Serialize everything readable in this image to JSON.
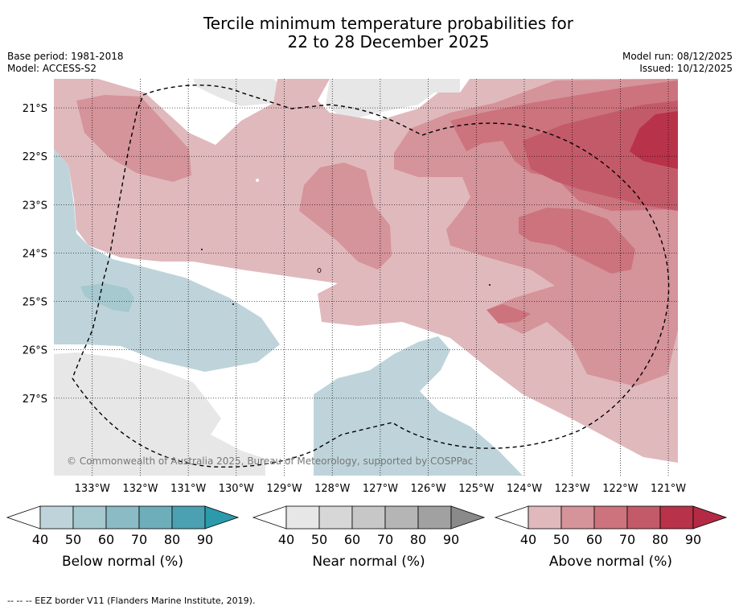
{
  "title_line1": "Tercile minimum temperature probabilities for",
  "title_line2": "22 to 28 December 2025",
  "base_period": "Base period: 1981-2018",
  "model": "Model: ACCESS-S2",
  "model_run": "Model run: 08/12/2025",
  "issued": "Issued: 10/12/2025",
  "copyright": "© Commonwealth of Australia 2025, Bureau of Meteorology, supported by COSPPac",
  "footnote": "--  --  -- EEZ border V11 (Flanders Marine Institute, 2019).",
  "chart_data": {
    "type": "heatmap",
    "title": "Tercile minimum temperature probabilities for 22 to 28 December 2025",
    "x_ticks": [
      "133°W",
      "132°W",
      "131°W",
      "130°W",
      "129°W",
      "128°W",
      "127°W",
      "126°W",
      "125°W",
      "124°W",
      "123°W",
      "122°W",
      "121°W"
    ],
    "y_ticks": [
      "21°S",
      "22°S",
      "23°S",
      "24°S",
      "25°S",
      "26°S",
      "27°S"
    ],
    "lon_range": [
      -133.8,
      -120.8
    ],
    "lat_range": [
      -28.6,
      -20.4
    ],
    "categories": [
      "Below normal",
      "Near normal",
      "Above normal"
    ],
    "colorbars": [
      {
        "label": "Below normal (%)",
        "ticks": [
          "40",
          "50",
          "60",
          "70",
          "80",
          "90"
        ],
        "colors": [
          "#bed4da",
          "#a6c8cf",
          "#8bbbc4",
          "#6eaebb",
          "#4ba1b1",
          "#2b9aab"
        ]
      },
      {
        "label": "Near normal (%)",
        "ticks": [
          "40",
          "50",
          "60",
          "70",
          "80",
          "90"
        ],
        "colors": [
          "#e7e7e7",
          "#d7d7d7",
          "#c7c7c7",
          "#b5b5b5",
          "#a1a1a1",
          "#8a8a8a"
        ]
      },
      {
        "label": "Above normal (%)",
        "ticks": [
          "40",
          "50",
          "60",
          "70",
          "80",
          "90"
        ],
        "colors": [
          "#e0b9bd",
          "#d5939a",
          "#cc737e",
          "#c35a6a",
          "#b8324a",
          "#b42a45"
        ]
      }
    ]
  }
}
